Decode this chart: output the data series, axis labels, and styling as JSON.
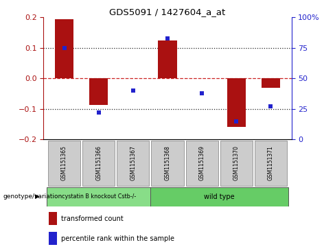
{
  "title": "GDS5091 / 1427604_a_at",
  "samples": [
    "GSM1151365",
    "GSM1151366",
    "GSM1151367",
    "GSM1151368",
    "GSM1151369",
    "GSM1151370",
    "GSM1151371"
  ],
  "bar_values": [
    0.195,
    -0.088,
    0.0,
    0.125,
    0.0,
    -0.158,
    -0.03
  ],
  "dot_values_pct": [
    75,
    22,
    40,
    83,
    38,
    15,
    27
  ],
  "bar_color": "#aa1111",
  "dot_color": "#2222cc",
  "hline_color": "#cc2222",
  "grid_color": "#333333",
  "ylim": [
    -0.2,
    0.2
  ],
  "y2lim": [
    0,
    100
  ],
  "yticks": [
    -0.2,
    -0.1,
    0,
    0.1,
    0.2
  ],
  "y2ticks": [
    0,
    25,
    50,
    75,
    100
  ],
  "dotted_lines": [
    -0.1,
    0.1
  ],
  "group1_label": "cystatin B knockout Cstb-/-",
  "group2_label": "wild type",
  "group1_count": 3,
  "group2_count": 4,
  "group1_color": "#88dd88",
  "group2_color": "#66cc66",
  "genotype_label": "genotype/variation",
  "legend1_label": "transformed count",
  "legend2_label": "percentile rank within the sample",
  "bar_width": 0.55
}
